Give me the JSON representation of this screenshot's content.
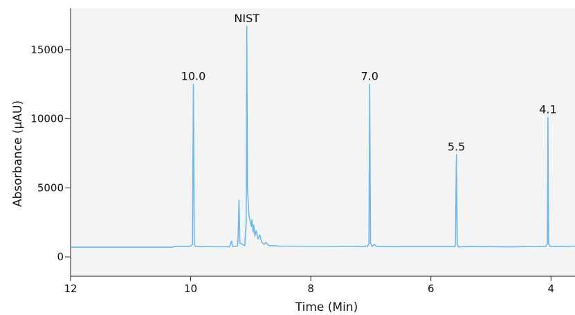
{
  "chart_data": {
    "type": "line",
    "title": "",
    "xlabel": "Time (Min)",
    "ylabel": "Absorbance (µAU)",
    "xlim": [
      12,
      3.6
    ],
    "ylim": [
      -1400,
      18000
    ],
    "x_reversed": true,
    "grid": false,
    "x_ticks": [
      12,
      10,
      8,
      6,
      4
    ],
    "y_ticks": [
      0,
      5000,
      10000,
      15000
    ],
    "color": "#6db6ea",
    "series": [
      {
        "points": [
          [
            12.0,
            700
          ],
          [
            10.3,
            700
          ],
          [
            10.28,
            760
          ],
          [
            10.15,
            760
          ],
          [
            10.0,
            770
          ],
          [
            9.97,
            900
          ],
          [
            9.955,
            12500
          ],
          [
            9.94,
            900
          ],
          [
            9.92,
            760
          ],
          [
            9.6,
            730
          ],
          [
            9.35,
            740
          ],
          [
            9.32,
            1150
          ],
          [
            9.3,
            760
          ],
          [
            9.22,
            780
          ],
          [
            9.21,
            1500
          ],
          [
            9.195,
            4100
          ],
          [
            9.18,
            1000
          ],
          [
            9.1,
            820
          ],
          [
            9.075,
            2500
          ],
          [
            9.065,
            16700
          ],
          [
            9.055,
            5000
          ],
          [
            9.03,
            3000
          ],
          [
            9.01,
            2600
          ],
          [
            8.99,
            2200
          ],
          [
            8.98,
            2700
          ],
          [
            8.96,
            1800
          ],
          [
            8.95,
            2300
          ],
          [
            8.93,
            1500
          ],
          [
            8.91,
            1900
          ],
          [
            8.88,
            1300
          ],
          [
            8.85,
            1600
          ],
          [
            8.82,
            1100
          ],
          [
            8.78,
            900
          ],
          [
            8.75,
            1050
          ],
          [
            8.7,
            820
          ],
          [
            8.5,
            780
          ],
          [
            7.2,
            760
          ],
          [
            7.05,
            780
          ],
          [
            7.03,
            1000
          ],
          [
            7.02,
            12500
          ],
          [
            7.005,
            1000
          ],
          [
            6.98,
            760
          ],
          [
            6.94,
            900
          ],
          [
            6.9,
            760
          ],
          [
            6.5,
            740
          ],
          [
            5.6,
            740
          ],
          [
            5.59,
            900
          ],
          [
            5.575,
            7400
          ],
          [
            5.56,
            900
          ],
          [
            5.54,
            720
          ],
          [
            5.35,
            760
          ],
          [
            5.0,
            740
          ],
          [
            4.7,
            720
          ],
          [
            4.45,
            740
          ],
          [
            4.08,
            760
          ],
          [
            4.06,
            1000
          ],
          [
            4.05,
            10100
          ],
          [
            4.04,
            1000
          ],
          [
            4.02,
            760
          ],
          [
            3.8,
            760
          ],
          [
            3.6,
            780
          ]
        ]
      }
    ],
    "annotations": [
      {
        "text": "10.0",
        "x": 9.955,
        "y": 12500
      },
      {
        "text": "NIST",
        "x": 9.065,
        "y": 16700
      },
      {
        "text": "7.0",
        "x": 7.02,
        "y": 12500
      },
      {
        "text": "5.5",
        "x": 5.575,
        "y": 7400
      },
      {
        "text": "4.1",
        "x": 4.05,
        "y": 10100
      }
    ]
  }
}
